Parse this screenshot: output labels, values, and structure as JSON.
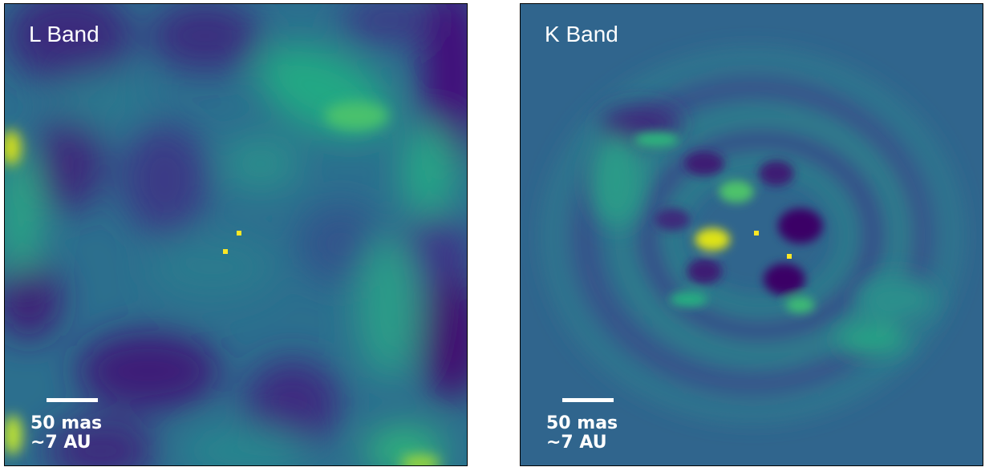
{
  "colors": {
    "background": "#31688e",
    "low": "#440154",
    "dark": "#3e2a7a",
    "mid": "#21918c",
    "green": "#35b779",
    "bright": "#fde725"
  },
  "panels": [
    {
      "label": "L Band",
      "scale_line1": "50 mas",
      "scale_line2": "~7 AU"
    },
    {
      "label": "K Band",
      "scale_line1": "50 mas",
      "scale_line2": "~7 AU"
    }
  ]
}
